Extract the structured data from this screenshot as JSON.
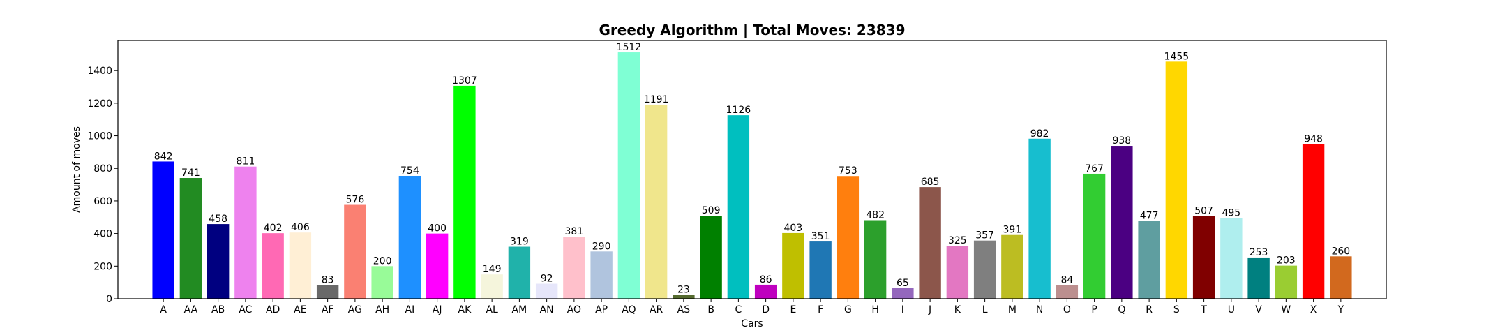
{
  "chart_data": {
    "type": "bar",
    "title": "Greedy Algorithm | Total Moves: 23839",
    "xlabel": "Cars",
    "ylabel": "Amount of moves",
    "ylim": [
      0,
      1585
    ],
    "yticks": [
      0,
      200,
      400,
      600,
      800,
      1000,
      1200,
      1400
    ],
    "grid": false,
    "categories": [
      "A",
      "AA",
      "AB",
      "AC",
      "AD",
      "AE",
      "AF",
      "AG",
      "AH",
      "AI",
      "AJ",
      "AK",
      "AL",
      "AM",
      "AN",
      "AO",
      "AP",
      "AQ",
      "AR",
      "AS",
      "B",
      "C",
      "D",
      "E",
      "F",
      "G",
      "H",
      "I",
      "J",
      "K",
      "L",
      "M",
      "N",
      "O",
      "P",
      "Q",
      "R",
      "S",
      "T",
      "U",
      "V",
      "W",
      "X",
      "Y"
    ],
    "values": [
      842,
      741,
      458,
      811,
      402,
      406,
      83,
      576,
      200,
      754,
      400,
      1307,
      149,
      319,
      92,
      381,
      290,
      1512,
      1191,
      23,
      509,
      1126,
      86,
      403,
      351,
      753,
      482,
      65,
      685,
      325,
      357,
      391,
      982,
      84,
      767,
      938,
      477,
      1455,
      507,
      495,
      253,
      203,
      948,
      260
    ],
    "colors": [
      "#0000ff",
      "#228b22",
      "#000080",
      "#ee82ee",
      "#ff69b4",
      "#ffefd5",
      "#696969",
      "#fa8072",
      "#98fb98",
      "#1e90ff",
      "#ff00ff",
      "#00ff00",
      "#f5f5dc",
      "#20b2aa",
      "#e6e6fa",
      "#ffc0cb",
      "#b0c4de",
      "#7fffd4",
      "#f0e68c",
      "#556b2f",
      "#008000",
      "#00bfbf",
      "#bf00bf",
      "#bfbf00",
      "#1f77b4",
      "#ff7f0e",
      "#2ca02c",
      "#9467bd",
      "#8c564b",
      "#e377c2",
      "#7f7f7f",
      "#bcbd22",
      "#17becf",
      "#bc8f8f",
      "#32cd32",
      "#4b0082",
      "#5f9ea0",
      "#ffd700",
      "#800000",
      "#afeeee",
      "#008080",
      "#9acd32",
      "#ff0000",
      "#d2691e"
    ]
  }
}
